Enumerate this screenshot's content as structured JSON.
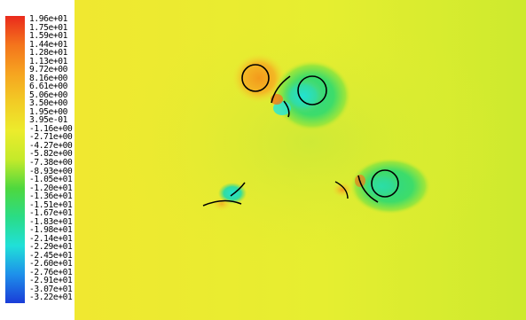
{
  "colors": {
    "background_yellow": "#f0f030",
    "stagnation_orange": "#f29a1c",
    "wake_green": "#2fe07a",
    "cyan_core": "#2ee8c8",
    "surface_black": "#000000"
  },
  "chart_data": {
    "type": "heatmap",
    "description_kind": "contour field with colorbar",
    "colorbar": {
      "colors_top_to_bottom": [
        "#ea2a1c",
        "#f4741c",
        "#f6a420",
        "#f2cc25",
        "#ecec2c",
        "#c4ea2a",
        "#4ed83e",
        "#2adc86",
        "#20e0d8",
        "#1e90ea",
        "#1a3cd8"
      ],
      "labels": [
        "1.96e+01",
        "1.75e+01",
        "1.59e+01",
        "1.44e+01",
        "1.28e+01",
        "1.13e+01",
        "9.72e+00",
        "8.16e+00",
        "6.61e+00",
        "5.06e+00",
        "3.50e+00",
        "1.95e+00",
        "3.95e-01",
        "-1.16e+00",
        "-2.71e+00",
        "-4.27e+00",
        "-5.82e+00",
        "-7.38e+00",
        "-8.93e+00",
        "-1.05e+01",
        "-1.20e+01",
        "-1.36e+01",
        "-1.51e+01",
        "-1.67e+01",
        "-1.83e+01",
        "-1.98e+01",
        "-2.14e+01",
        "-2.29e+01",
        "-2.45e+01",
        "-2.60e+01",
        "-2.76e+01",
        "-2.91e+01",
        "-3.07e+01",
        "-3.22e+01"
      ],
      "min": -32.2,
      "max": 19.6
    },
    "grid": false,
    "legend_position": "left"
  }
}
